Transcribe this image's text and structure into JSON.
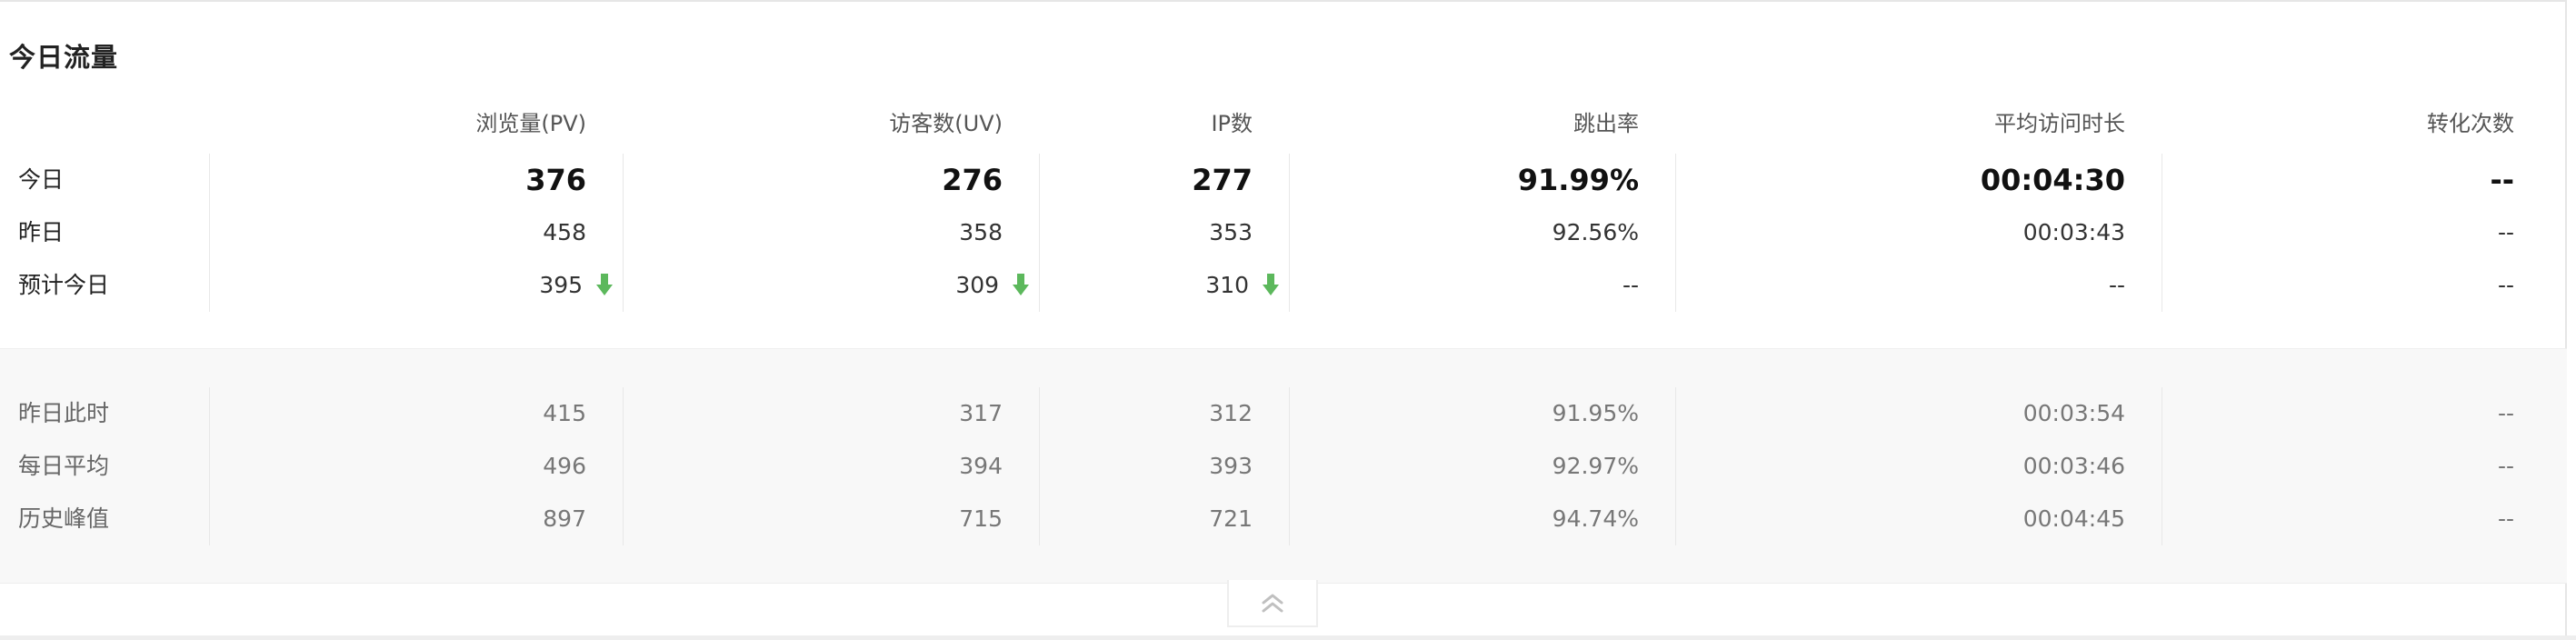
{
  "widget": {
    "title": "今日流量"
  },
  "columns": [
    "浏览量(PV)",
    "访客数(UV)",
    "IP数",
    "跳出率",
    "平均访问时长",
    "转化次数"
  ],
  "today": {
    "label": "今日",
    "values": [
      "376",
      "276",
      "277",
      "91.99%",
      "00:04:30",
      "--"
    ]
  },
  "yesterday": {
    "label": "昨日",
    "values": [
      "458",
      "358",
      "353",
      "92.56%",
      "00:03:43",
      "--"
    ]
  },
  "forecast": {
    "label": "预计今日",
    "values": [
      "395",
      "309",
      "310",
      "--",
      "--",
      "--"
    ],
    "trend_icon": "arrow-down-icon",
    "trend_color": "#5cb85c"
  },
  "history": {
    "yesterday_same_time": {
      "label": "昨日此时",
      "values": [
        "415",
        "317",
        "312",
        "91.95%",
        "00:03:54",
        "--"
      ]
    },
    "daily_average": {
      "label": "每日平均",
      "values": [
        "496",
        "394",
        "393",
        "92.97%",
        "00:03:46",
        "--"
      ]
    },
    "historical_peak": {
      "label": "历史峰值",
      "values": [
        "897",
        "715",
        "721",
        "94.74%",
        "00:04:45",
        "--"
      ]
    }
  },
  "collapse_icon": "double-chevron-up-icon"
}
